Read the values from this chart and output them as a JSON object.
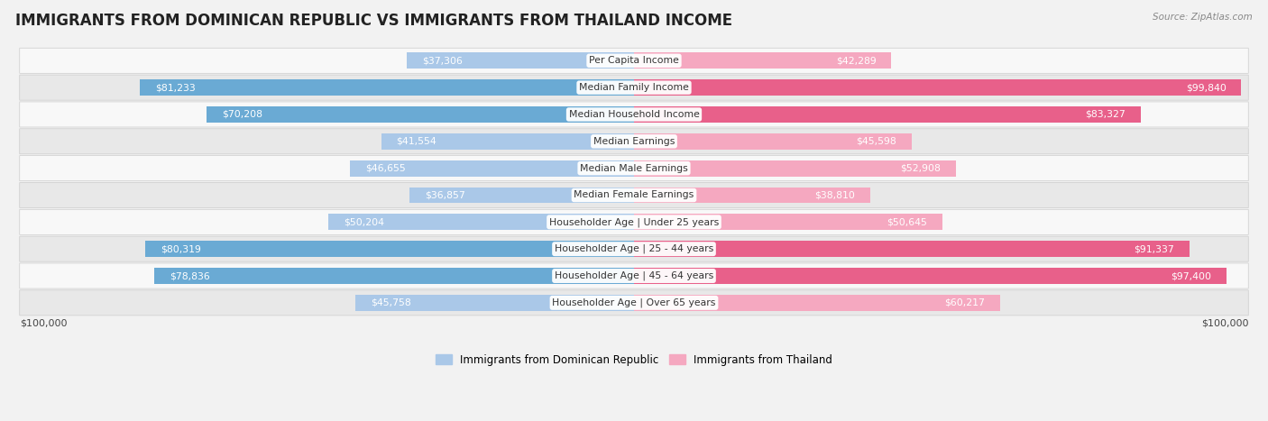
{
  "title": "IMMIGRANTS FROM DOMINICAN REPUBLIC VS IMMIGRANTS FROM THAILAND INCOME",
  "source": "Source: ZipAtlas.com",
  "categories": [
    "Per Capita Income",
    "Median Family Income",
    "Median Household Income",
    "Median Earnings",
    "Median Male Earnings",
    "Median Female Earnings",
    "Householder Age | Under 25 years",
    "Householder Age | 25 - 44 years",
    "Householder Age | 45 - 64 years",
    "Householder Age | Over 65 years"
  ],
  "dominican": [
    37306,
    81233,
    70208,
    41554,
    46655,
    36857,
    50204,
    80319,
    78836,
    45758
  ],
  "thailand": [
    42289,
    99840,
    83327,
    45598,
    52908,
    38810,
    50645,
    91337,
    97400,
    60217
  ],
  "dominican_color_light": "#aac8e8",
  "dominican_color_dark": "#6aaad4",
  "thailand_color_light": "#f5a8c0",
  "thailand_color_dark": "#e8608a",
  "dominican_label": "Immigrants from Dominican Republic",
  "thailand_label": "Immigrants from Thailand",
  "max_value": 100000,
  "x_axis_label_left": "$100,000",
  "x_axis_label_right": "$100,000",
  "background_color": "#f2f2f2",
  "row_bg_light": "#f8f8f8",
  "row_bg_dark": "#e8e8e8",
  "title_fontsize": 12,
  "label_fontsize": 7.8,
  "value_fontsize": 7.8,
  "threshold_inside": 30000
}
